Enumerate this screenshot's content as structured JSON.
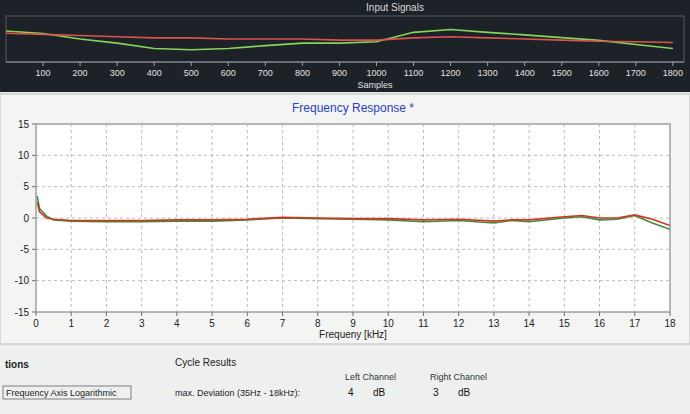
{
  "chart_data": [
    {
      "type": "line",
      "title": "Input Signals",
      "x_label": "Samples",
      "x": [
        0,
        100,
        200,
        300,
        400,
        500,
        600,
        700,
        800,
        900,
        1000,
        1100,
        1200,
        1300,
        1400,
        1500,
        1600,
        1700,
        1800
      ],
      "series": [
        {
          "color": "#86d45a",
          "values": [
            0.35,
            0.24,
            0,
            -0.18,
            -0.41,
            -0.47,
            -0.41,
            -0.29,
            -0.18,
            -0.18,
            -0.12,
            0.29,
            0.41,
            0.29,
            0.18,
            0.06,
            -0.06,
            -0.24,
            -0.41
          ]
        },
        {
          "color": "#d9534f",
          "values": [
            0.25,
            0.2,
            0.15,
            0.1,
            0.05,
            0.05,
            0,
            0,
            0,
            -0.05,
            -0.05,
            0.05,
            0.1,
            0.05,
            0,
            -0.05,
            -0.1,
            -0.12,
            -0.15
          ]
        }
      ],
      "xlim": [
        0,
        1830
      ],
      "ylim": [
        -1,
        1
      ],
      "xticks": [
        100,
        200,
        300,
        400,
        500,
        600,
        700,
        800,
        900,
        1000,
        1100,
        1200,
        1300,
        1400,
        1500,
        1600,
        1700,
        1800
      ],
      "tick_labels": "x"
    },
    {
      "type": "line",
      "title": "Frequency Response *",
      "x_label": "Frequeny [kHz]",
      "x": [
        0.035,
        0.1,
        0.3,
        0.5,
        1,
        2,
        3,
        4,
        5,
        6,
        7,
        8,
        9,
        10,
        11,
        12,
        13,
        13.5,
        14,
        15,
        15.5,
        16,
        16.5,
        17,
        17.5,
        18
      ],
      "series": [
        {
          "color": "#3a8f3a",
          "values": [
            3.5,
            1.5,
            0.3,
            -0.3,
            -0.5,
            -0.6,
            -0.6,
            -0.5,
            -0.5,
            -0.3,
            0,
            -0.1,
            -0.2,
            -0.3,
            -0.6,
            -0.4,
            -0.8,
            -0.4,
            -0.6,
            0,
            0.2,
            -0.3,
            -0.2,
            0.4,
            -0.8,
            -1.8
          ]
        },
        {
          "color": "#d4341f",
          "values": [
            2.5,
            1,
            0,
            -0.2,
            -0.4,
            -0.4,
            -0.4,
            -0.3,
            -0.3,
            -0.2,
            0.1,
            0,
            -0.1,
            -0.1,
            -0.3,
            -0.2,
            -0.5,
            -0.3,
            -0.3,
            0.2,
            0.4,
            0,
            0,
            0.5,
            -0.2,
            -1.2
          ]
        }
      ],
      "xlim": [
        0,
        18
      ],
      "ylim": [
        -15,
        15
      ],
      "xticks": [
        0,
        1,
        2,
        3,
        4,
        5,
        6,
        7,
        8,
        9,
        10,
        11,
        12,
        13,
        14,
        15,
        16,
        17,
        18
      ],
      "yticks": [
        -15,
        -10,
        -5,
        0,
        5,
        10,
        15
      ],
      "grid": true
    }
  ],
  "panel": {
    "options_title": "tions",
    "option": "Frequency Axis Logarithmic",
    "results_title": "Cycle Results",
    "deviation_label": "max. Deviation (35Hz - 18kHz):",
    "left": {
      "label": "Left Channel",
      "value": 4,
      "unit": "dB"
    },
    "right": {
      "label": "Right Channel",
      "value": 3,
      "unit": "dB"
    }
  }
}
